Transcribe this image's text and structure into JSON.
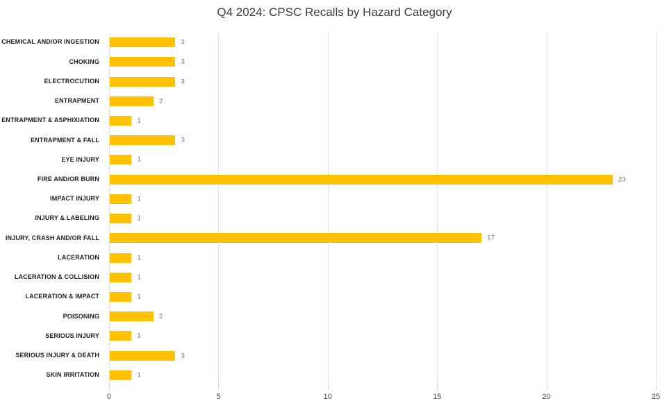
{
  "chart_data": {
    "type": "bar",
    "orientation": "horizontal",
    "title": "Q4 2024: CPSC Recalls by Hazard Category",
    "categories": [
      "CHEMICAL AND/OR INGESTION",
      "CHOKING",
      "ELECTROCUTION",
      "ENTRAPMENT",
      "ENTRAPMENT & ASPHIXIATION",
      "ENTRAPMENT & FALL",
      "EYE INJURY",
      "FIRE AND/OR BURN",
      "IMPACT INJURY",
      "INJURY & LABELING",
      "INJURY, CRASH AND/OR FALL",
      "LACERATION",
      "LACERATION & COLLISION",
      "LACERATION & IMPACT",
      "POISONING",
      "SERIOUS INJURY",
      "SERIOUS INJURY & DEATH",
      "SKIN IRRITATION"
    ],
    "values": [
      3,
      3,
      3,
      2,
      1,
      3,
      1,
      23,
      1,
      1,
      17,
      1,
      1,
      1,
      2,
      1,
      3,
      1
    ],
    "xlabel": "",
    "ylabel": "",
    "xlim": [
      0,
      25
    ],
    "xticks": [
      0,
      5,
      10,
      15,
      20,
      25
    ],
    "grid": true,
    "legend": false,
    "data_labels": true,
    "colors": {
      "bar": "#FFC000",
      "gridline": "#E8DEE6",
      "tick_line": "#DDCDD9",
      "title_text": "#3C3C3C",
      "category_text": "#1F1F1F",
      "value_label_text": "#7E6C6C",
      "tick_label_text": "#4C4C4C",
      "background": "#FFFFFF"
    }
  }
}
